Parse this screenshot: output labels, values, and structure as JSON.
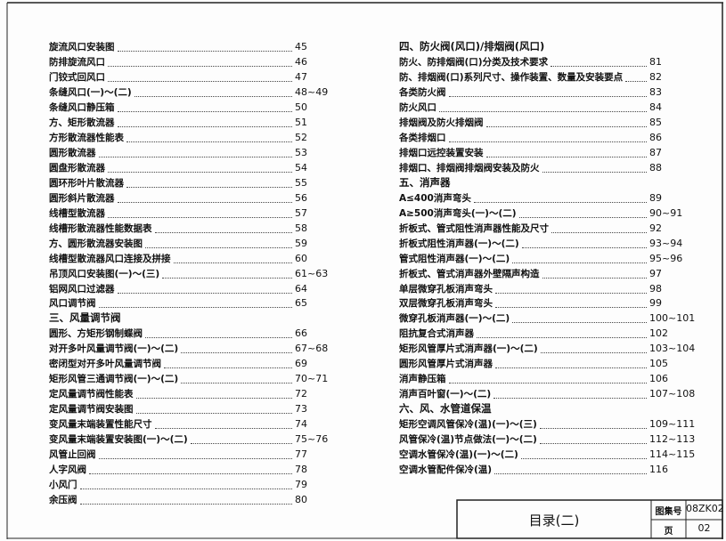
{
  "columns": [
    {
      "entries": [
        {
          "title": "旋流风口安装图",
          "page": "45"
        },
        {
          "title": "防排旋流风口",
          "page": "46"
        },
        {
          "title": "门铰式回风口",
          "page": "47"
        },
        {
          "title": "条缝风口(一)～(二)",
          "page": "48~49"
        },
        {
          "title": "条缝风口静压箱",
          "page": "50"
        },
        {
          "title": "方、矩形散流器",
          "page": "51"
        },
        {
          "title": "方形散流器性能表",
          "page": "52"
        },
        {
          "title": "圆形散流器",
          "page": "53"
        },
        {
          "title": "圆盘形散流器",
          "page": "54"
        },
        {
          "title": "圆环形叶片散流器",
          "page": "55"
        },
        {
          "title": "圆形斜片散流器",
          "page": "56"
        },
        {
          "title": "线槽型散流器",
          "page": "57"
        },
        {
          "title": "线槽形散流器性能数据表",
          "page": "58"
        },
        {
          "title": "方、圆形散流器安装图",
          "page": "59"
        },
        {
          "title": "线槽型散流器风口连接及拼接",
          "page": "60"
        },
        {
          "title": "吊顶风口安装图(一)～(三)",
          "page": "61~63"
        },
        {
          "title": "铝网风口过滤器",
          "page": "64"
        },
        {
          "title": "风口调节阀",
          "page": "65"
        },
        {
          "heading": "三、风量调节阀"
        },
        {
          "title": "圆形、方矩形钢制蝶阀",
          "page": "66"
        },
        {
          "title": "对开多叶风量调节阀(一)～(二)",
          "page": "67~68"
        },
        {
          "title": "密闭型对开多叶风量调节阀",
          "page": "69"
        },
        {
          "title": "矩形风管三通调节阀(一)～(二)",
          "page": "70~71"
        },
        {
          "title": "定风量调节阀性能表",
          "page": "72"
        },
        {
          "title": "定风量调节阀安装图",
          "page": "73"
        },
        {
          "title": "变风量末端装置性能尺寸",
          "page": "74"
        },
        {
          "title": "变风量末端装置安装图(一)～(二)",
          "page": "75~76"
        },
        {
          "title": "风管止回阀",
          "page": "77"
        },
        {
          "title": "人字风阀",
          "page": "78"
        },
        {
          "title": "小风门",
          "page": "79"
        },
        {
          "title": "余压阀",
          "page": "80"
        }
      ]
    },
    {
      "entries": [
        {
          "heading": "四、防火阀(风口)/排烟阀(风口)"
        },
        {
          "title": "防火、防排烟阀(口)分类及技术要求",
          "page": "81"
        },
        {
          "title": "防、排烟阀(口)系列尺寸、操作装置、数量及安装要点",
          "page": "82"
        },
        {
          "title": "各类防火阀",
          "page": "83"
        },
        {
          "title": "防火风口",
          "page": "84"
        },
        {
          "title": "排烟阀及防火排烟阀",
          "page": "85"
        },
        {
          "title": "各类排烟口",
          "page": "86"
        },
        {
          "title": "排烟口远控装置安装",
          "page": "87"
        },
        {
          "title": "排烟口、排烟阀排烟阀安装及防火",
          "page": "88"
        },
        {
          "heading": "五、消声器"
        },
        {
          "title": "A≤400消声弯头",
          "page": "89"
        },
        {
          "title": "A≥500消声弯头(一)～(二)",
          "page": "90~91"
        },
        {
          "title": "折板式、管式阻性消声器性能及尺寸",
          "page": "92"
        },
        {
          "title": "折板式阻性消声器(一)～(二)",
          "page": "93~94"
        },
        {
          "title": "管式阻性消声器(一)～(二)",
          "page": "95~96"
        },
        {
          "title": "折板式、管式消声器外壁隔声构造",
          "page": "97"
        },
        {
          "title": "单层微穿孔板消声弯头",
          "page": "98"
        },
        {
          "title": "双层微穿孔板消声弯头",
          "page": "99"
        },
        {
          "title": "微穿孔板消声器(一)～(二)",
          "page": "100~101"
        },
        {
          "title": "阻抗复合式消声器",
          "page": "102"
        },
        {
          "title": "矩形风管厚片式消声器(一)～(二)",
          "page": "103~104"
        },
        {
          "title": "圆形风管厚片式消声器",
          "page": "105"
        },
        {
          "title": "消声静压箱",
          "page": "106"
        },
        {
          "title": "消声百叶窗(一)～(二)",
          "page": "107~108"
        },
        {
          "heading": "六、风、水管道保温"
        },
        {
          "title": "矩形空调风管保冷(温)(一)～(三)",
          "page": "109~111"
        },
        {
          "title": "风管保冷(温)节点做法(一)～(二)",
          "page": "112~113"
        },
        {
          "title": "空调水管保冷(温)(一)～(二)",
          "page": "114~115"
        },
        {
          "title": "空调水管配件保冷(温)",
          "page": "116"
        }
      ]
    }
  ],
  "title_block": {
    "title": "目录(二)",
    "atlas_label": "图集号",
    "atlas_no": "08ZK02",
    "page_label": "页",
    "page_no": "02"
  }
}
